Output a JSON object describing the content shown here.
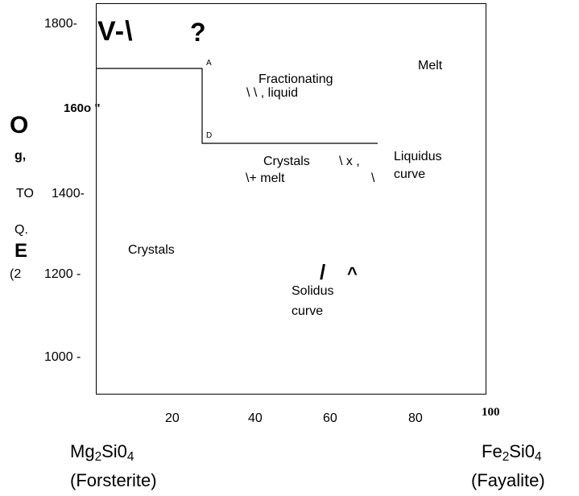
{
  "y_axis": {
    "ticks": [
      "1800-",
      "160o \"",
      "1400-",
      "1200 -",
      "1000 -"
    ],
    "garbled_label": [
      "O",
      "g,",
      "TO",
      "Q.",
      "E",
      "(2"
    ]
  },
  "x_axis": {
    "ticks": [
      "20",
      "40",
      "60",
      "80",
      "100"
    ]
  },
  "endmembers": {
    "left_formula": "Mg2Si04",
    "left_name": "(Forsterite)",
    "right_formula": "Fe2Si04",
    "right_name": "(Fayalite)"
  },
  "top_marks": [
    "V-\\",
    "?"
  ],
  "point_labels": {
    "a": "A",
    "d": "D"
  },
  "regions": {
    "melt": "Melt",
    "fractionating": [
      "Fractionating",
      "\\ \\ , liquid"
    ],
    "crystals_melt": [
      "Crystals",
      "\\ x ,",
      "\\+ melt",
      "\\"
    ],
    "liquidus": [
      "Liquidus",
      "curve"
    ],
    "crystals": "Crystals",
    "solidus_marks": [
      "/",
      "^"
    ],
    "solidus": [
      "Solidus",
      "curve"
    ]
  },
  "chart_data": {
    "type": "phase-diagram",
    "xlabel": "",
    "ylabel": "",
    "series": [
      {
        "name": "",
        "points": [
          [
            0,
            1710
          ],
          [
            27,
            1710
          ],
          [
            27,
            1540
          ],
          [
            72,
            1540
          ]
        ]
      }
    ]
  }
}
